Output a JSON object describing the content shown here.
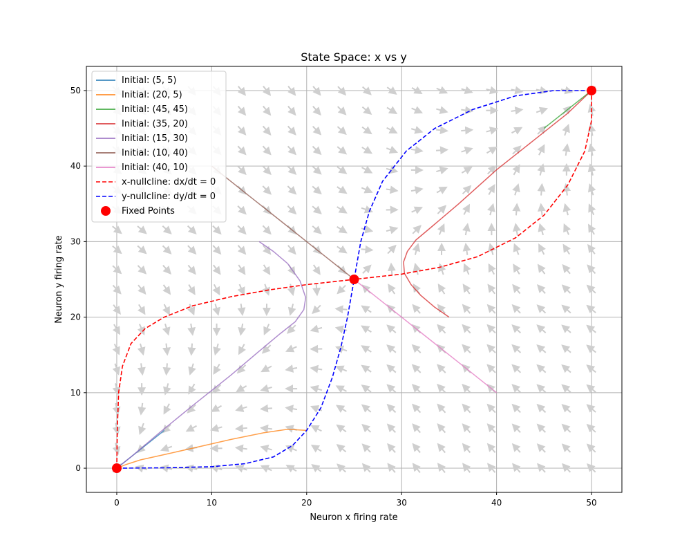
{
  "chart_data": {
    "type": "line",
    "title": "State Space: x vs y",
    "xlabel": "Neuron x firing rate",
    "ylabel": "Neuron y firing rate",
    "xlim": [
      -3.2,
      53.2
    ],
    "ylim": [
      -3.2,
      53.2
    ],
    "xticks": [
      0,
      10,
      20,
      30,
      40,
      50
    ],
    "yticks": [
      0,
      10,
      20,
      30,
      40,
      50
    ],
    "grid": true,
    "legend_position": "upper-left",
    "series": [
      {
        "name": "Initial: (5, 5)",
        "color": "#1f77b4",
        "x": [
          5,
          4,
          3,
          2,
          1,
          0.3,
          0
        ],
        "y": [
          5,
          4,
          3,
          2,
          1,
          0.3,
          0
        ]
      },
      {
        "name": "Initial: (20, 5)",
        "color": "#ff7f0e",
        "x": [
          20,
          18,
          15.5,
          12,
          8.5,
          5,
          2.5,
          1,
          0.3,
          0
        ],
        "y": [
          5,
          5.15,
          4.7,
          3.8,
          2.8,
          1.8,
          1.1,
          0.5,
          0.15,
          0
        ]
      },
      {
        "name": "Initial: (45, 45)",
        "color": "#2ca02c",
        "x": [
          45,
          46.5,
          48,
          49.3,
          50
        ],
        "y": [
          45,
          46.5,
          48,
          49.3,
          50
        ]
      },
      {
        "name": "Initial: (35, 20)",
        "color": "#d62728",
        "x": [
          35,
          33.5,
          32,
          31,
          30.3,
          30.2,
          30.6,
          31.5,
          33.2,
          36,
          40,
          44,
          47.5,
          50
        ],
        "y": [
          20,
          21.3,
          22.9,
          24.3,
          25.8,
          27.3,
          28.7,
          30.2,
          32,
          35,
          39.5,
          43.5,
          47,
          50
        ]
      },
      {
        "name": "Initial: (15, 30)",
        "color": "#9467bd",
        "x": [
          15,
          16.5,
          18,
          19.3,
          19.9,
          19.7,
          18.8,
          17.2,
          15,
          12,
          8,
          4.5,
          1.5,
          0
        ],
        "y": [
          30,
          28.7,
          27.1,
          24.8,
          22.6,
          21,
          19.4,
          17.8,
          15.5,
          12.3,
          8.3,
          4.7,
          1.5,
          0
        ]
      },
      {
        "name": "Initial: (10, 40)",
        "color": "#8c564b",
        "x": [
          10,
          14,
          18,
          21.5,
          24,
          25
        ],
        "y": [
          40,
          36,
          32,
          28.5,
          26,
          25
        ]
      },
      {
        "name": "Initial: (40, 10)",
        "color": "#e377c2",
        "x": [
          40,
          36,
          32,
          28.5,
          26,
          25
        ],
        "y": [
          10,
          14,
          18,
          21.5,
          24,
          25
        ]
      },
      {
        "name": "x-nullcline: dx/dt = 0",
        "color": "#ff0000",
        "dashed": true,
        "x": [
          0,
          0.05,
          0.2,
          0.6,
          1.5,
          3,
          5,
          8,
          12,
          16,
          20,
          25,
          30,
          34,
          38,
          42,
          45,
          47.5,
          49.3,
          50,
          50
        ],
        "y": [
          0,
          5,
          10,
          13.5,
          16.5,
          18.5,
          20,
          21.5,
          22.7,
          23.6,
          24.3,
          25,
          25.7,
          26.6,
          28,
          30.5,
          33.5,
          37.5,
          42,
          46,
          50
        ]
      },
      {
        "name": "y-nullcline: dy/dt = 0",
        "color": "#0000ff",
        "dashed": true,
        "x": [
          0,
          5,
          10,
          13.5,
          16.5,
          18.5,
          20,
          21.5,
          22.7,
          23.6,
          24.3,
          25,
          25.7,
          26.6,
          28,
          30.5,
          33.5,
          37.5,
          42,
          46,
          50
        ],
        "y": [
          0,
          0.05,
          0.2,
          0.6,
          1.5,
          3,
          5,
          8,
          12,
          16,
          20,
          25,
          30,
          34,
          38,
          42,
          45,
          47.5,
          49.3,
          50,
          50
        ]
      },
      {
        "name": "Fixed Points",
        "color": "#ff0000",
        "marker": "circle",
        "x": [
          0,
          25,
          50
        ],
        "y": [
          0,
          25,
          50
        ]
      }
    ],
    "vector_field": {
      "x_range": [
        0,
        50
      ],
      "y_range": [
        0,
        50
      ],
      "n": 20,
      "color": "#cccccc",
      "description": "direction arrows of the x/y firing-rate dynamics"
    }
  }
}
